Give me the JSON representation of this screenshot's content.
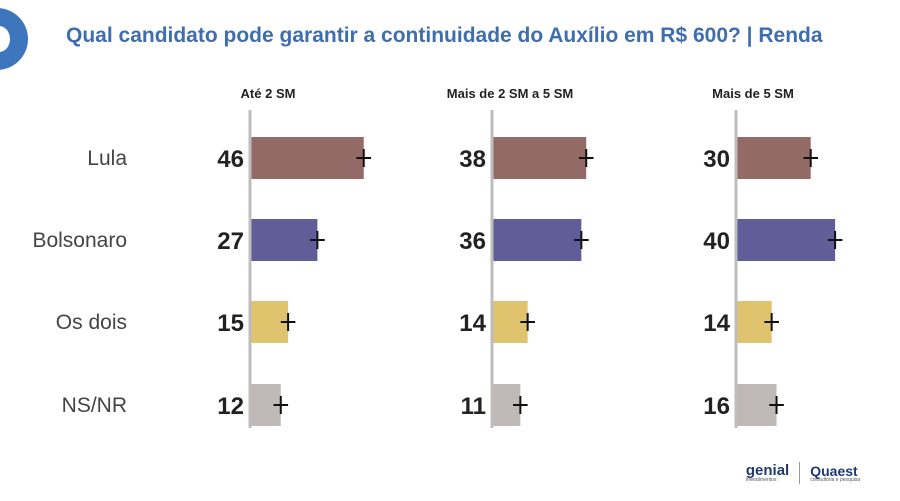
{
  "title": "Qual candidato pode garantir a continuidade do Auxílio em R$ 600? | Renda",
  "logos": {
    "genial": "genial",
    "genial_sub": "investimentos",
    "quaest": "Quaest",
    "quaest_sub": "consultoria e pesquisa"
  },
  "chart_data": {
    "type": "bar",
    "orientation": "horizontal",
    "title": "Qual candidato pode garantir a continuidade do Auxílio em R$ 600? | Renda",
    "categories": [
      "Lula",
      "Bolsonaro",
      "Os dois",
      "NS/NR"
    ],
    "category_colors": [
      "#946a67",
      "#615d98",
      "#dfc46d",
      "#c1b9b8"
    ],
    "error_bar": "±3",
    "panels": [
      {
        "name": "Até 2 SM",
        "values": [
          46,
          27,
          15,
          12
        ]
      },
      {
        "name": "Mais de 2 SM a 5 SM",
        "values": [
          38,
          36,
          14,
          11
        ]
      },
      {
        "name": "Mais de 5 SM",
        "values": [
          30,
          40,
          14,
          16
        ]
      }
    ],
    "xlim": [
      0,
      50
    ]
  }
}
